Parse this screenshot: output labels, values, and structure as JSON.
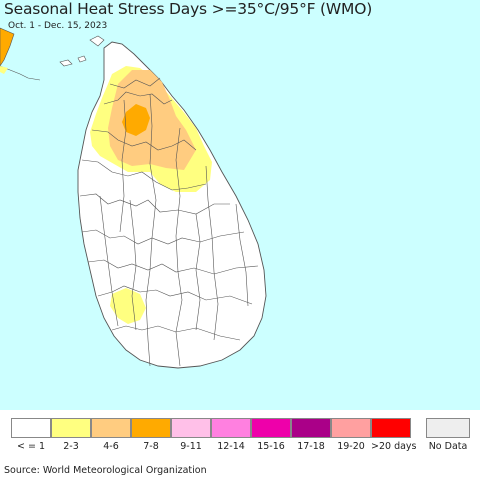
{
  "header": {
    "title": "Seasonal Heat Stress Days >=35°C/95°F (WMO)",
    "subtitle": "Oct. 1 - Dec. 15, 2023"
  },
  "map": {
    "ocean_color": "#ccffff",
    "land_color": "#ffffff",
    "border_color": "#555555"
  },
  "legend": {
    "items": [
      {
        "label": "< = 1",
        "color": "#ffffff"
      },
      {
        "label": "2-3",
        "color": "#ffff80"
      },
      {
        "label": "4-6",
        "color": "#ffcc80"
      },
      {
        "label": "7-8",
        "color": "#ffaa00"
      },
      {
        "label": "9-11",
        "color": "#ffc0e8"
      },
      {
        "label": "12-14",
        "color": "#ff80e0"
      },
      {
        "label": "15-16",
        "color": "#ee00aa"
      },
      {
        "label": "17-18",
        "color": "#aa0088"
      },
      {
        "label": "19-20",
        "color": "#ffa0a0"
      },
      {
        "label": ">20 days",
        "color": "#ff0000"
      }
    ],
    "no_data": {
      "label": "No Data",
      "color": "#eeeeee"
    }
  },
  "footer": {
    "source": "Source: World Meteorological Organization"
  }
}
